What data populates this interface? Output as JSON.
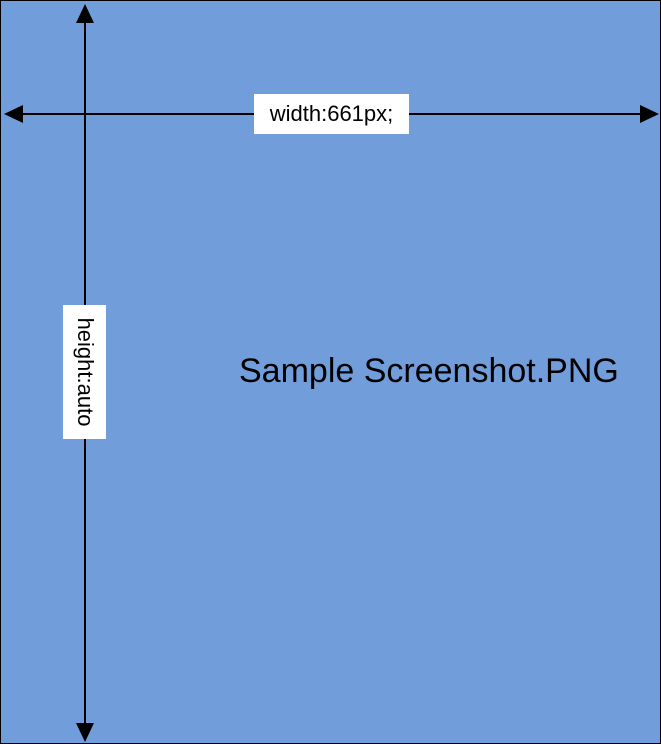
{
  "diagram": {
    "width_label": "width:661px;",
    "height_label": "height:auto",
    "file_label": "Sample Screenshot.PNG",
    "colors": {
      "fill": "#719ddb",
      "stroke": "#000000",
      "label_background": "#ffffff"
    }
  }
}
